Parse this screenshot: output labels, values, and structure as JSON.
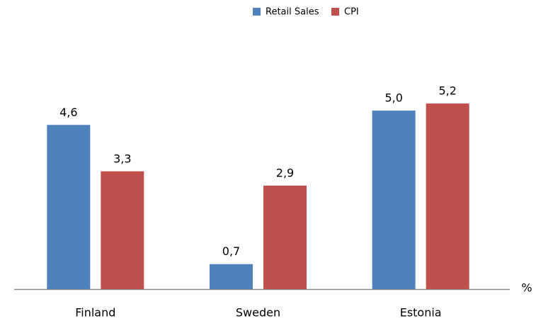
{
  "chart_data": {
    "type": "bar",
    "categories": [
      "Finland",
      "Sweden",
      "Estonia"
    ],
    "series": [
      {
        "name": "Retail Sales",
        "color": "#4f81bd",
        "values": [
          4.6,
          0.7,
          5.0
        ],
        "value_labels": [
          "4,6",
          "0,7",
          "5,0"
        ]
      },
      {
        "name": "CPI",
        "color": "#c0504d",
        "values": [
          3.3,
          2.9,
          5.2
        ],
        "value_labels": [
          "3,3",
          "2,9",
          "5,2"
        ]
      }
    ],
    "y_label": "%",
    "ylim": [
      0,
      8
    ],
    "legend": "top"
  }
}
